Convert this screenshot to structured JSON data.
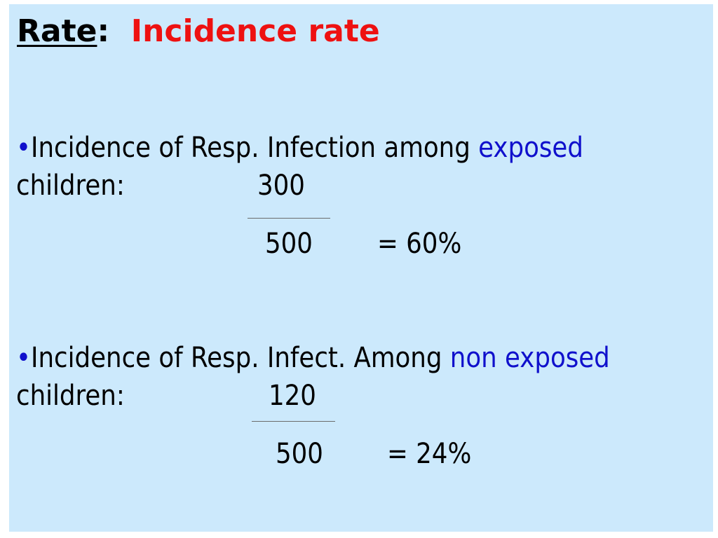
{
  "title": {
    "word": "Rate",
    "colon": ":",
    "topic": "Incidence rate"
  },
  "item1": {
    "bullet": "•",
    "text": "Incidence of Resp. Infection among ",
    "highlight": "exposed",
    "subject": "children:",
    "numerator": "300",
    "denominator": "500",
    "result": "= 60%"
  },
  "item2": {
    "bullet": "•",
    "text": "Incidence of Resp. Infect. Among ",
    "highlight": "non exposed",
    "subject": "children:",
    "numerator": "120",
    "denominator": "500",
    "result": "=  24%"
  },
  "colors": {
    "background": "#cce9fc",
    "title_accent": "#ee1111",
    "highlight": "#1010cc"
  }
}
